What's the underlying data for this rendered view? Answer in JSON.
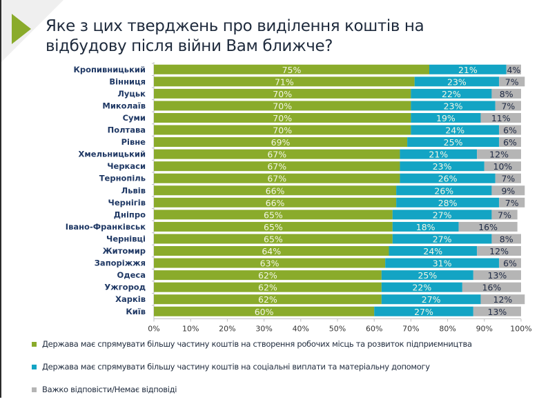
{
  "title": "Яке з цих тверджень про виділення коштів на відбудову після війни Вам ближче?",
  "colors": {
    "accent_arrow": "#8aab2b",
    "series_1": "#8aab2b",
    "series_2": "#13a4c4",
    "series_3": "#b5b5b5"
  },
  "chart_data": {
    "type": "bar",
    "orientation": "horizontal",
    "stacked": true,
    "title": "Яке з цих тверджень про виділення коштів на відбудову після війни Вам ближче?",
    "xlabel": "",
    "ylabel": "",
    "xlim": [
      0,
      100
    ],
    "x_ticks": [
      "0%",
      "10%",
      "20%",
      "30%",
      "40%",
      "50%",
      "60%",
      "70%",
      "80%",
      "90%",
      "100%"
    ],
    "grid": false,
    "legend_position": "bottom",
    "categories": [
      "Кропивницький",
      "Вінниця",
      "Луцьк",
      "Миколаїв",
      "Суми",
      "Полтава",
      "Рівне",
      "Хмельницький",
      "Черкаси",
      "Тернопіль",
      "Львів",
      "Чернігів",
      "Дніпро",
      "Івано-Франківськ",
      "Чернівці",
      "Житомир",
      "Запоріжжя",
      "Одеса",
      "Ужгород",
      "Харків",
      "Київ"
    ],
    "series": [
      {
        "name": "Держава має спрямувати більшу частину коштів на створення робочих місць та розвиток підприємництва",
        "color": "#8aab2b",
        "values": [
          75,
          71,
          70,
          70,
          70,
          70,
          69,
          67,
          67,
          67,
          66,
          66,
          65,
          65,
          65,
          64,
          63,
          62,
          62,
          62,
          60
        ]
      },
      {
        "name": "Держава має спрямувати більшу частину коштів на соціальні виплати та матеріальну допомогу",
        "color": "#13a4c4",
        "values": [
          21,
          23,
          22,
          23,
          19,
          24,
          25,
          21,
          23,
          26,
          26,
          28,
          27,
          18,
          27,
          24,
          31,
          25,
          22,
          27,
          27
        ]
      },
      {
        "name": "Важко відповісти/Немає відповіді",
        "color": "#b5b5b5",
        "values": [
          4,
          7,
          8,
          7,
          11,
          6,
          6,
          12,
          10,
          7,
          9,
          7,
          7,
          16,
          8,
          12,
          6,
          13,
          16,
          12,
          13
        ]
      }
    ]
  }
}
